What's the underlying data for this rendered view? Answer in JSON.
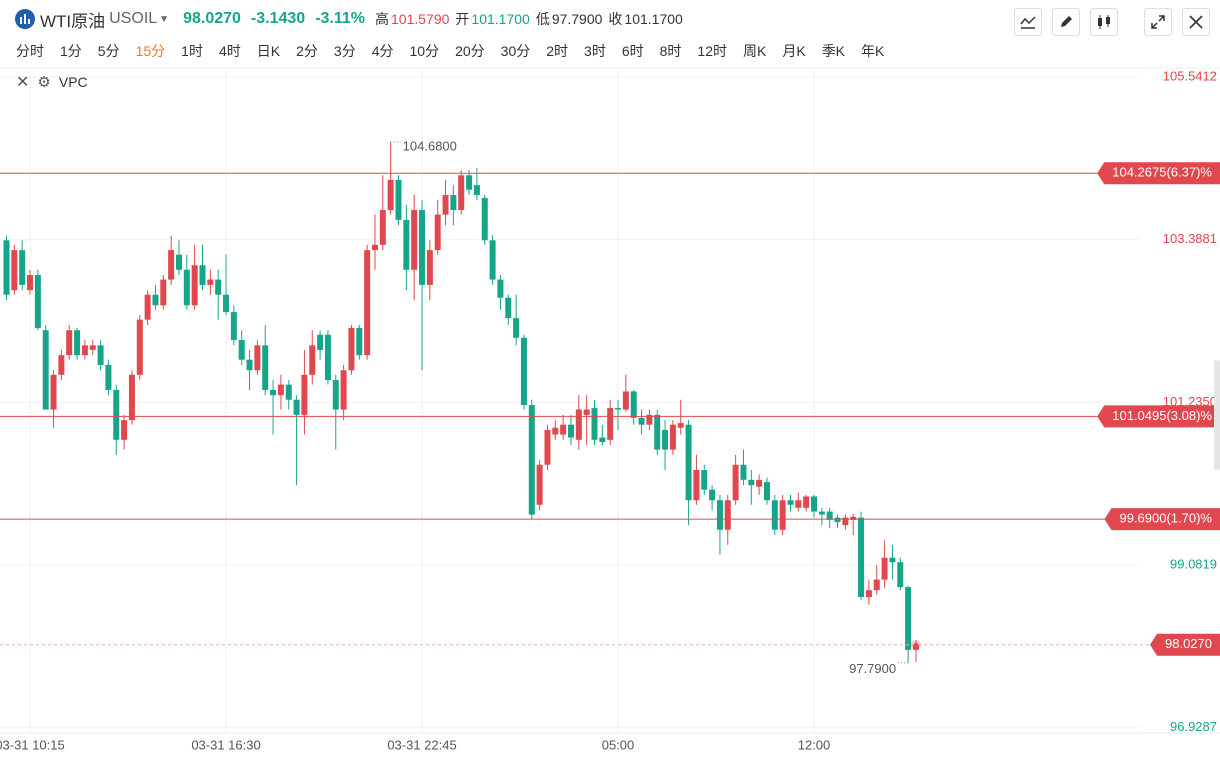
{
  "header": {
    "symbol_name": "WTI原油",
    "symbol": "USOIL",
    "last": "98.0270",
    "change": "-3.1430",
    "change_pct": "-3.11%",
    "high_label": "高",
    "high": "101.5790",
    "open_label": "开",
    "open": "101.1700",
    "low_label": "低",
    "low": "97.7900",
    "close_label": "收",
    "close": {
      "value": 101.17,
      "label": "101.1700"
    },
    "tabs": [
      "分时",
      "1分",
      "5分",
      "15分",
      "1时",
      "4时",
      "日K",
      "2分",
      "3分",
      "4分",
      "10分",
      "20分",
      "30分",
      "2时",
      "3时",
      "6时",
      "8时",
      "12时",
      "周K",
      "月K",
      "季K",
      "年K"
    ],
    "active_tab": "15分",
    "indicator": "VPC"
  },
  "chart_data": {
    "type": "candlestick",
    "up_color": "#e0474e",
    "down_color": "#17a58a",
    "grid": true,
    "categories": [
      null,
      null,
      null,
      "03-31 10:15",
      null,
      null,
      null,
      null,
      null,
      null,
      null,
      null,
      null,
      null,
      null,
      null,
      null,
      null,
      null,
      null,
      null,
      null,
      null,
      null,
      null,
      null,
      null,
      null,
      "03-31 16:30",
      null,
      null,
      null,
      null,
      null,
      null,
      null,
      null,
      null,
      null,
      null,
      null,
      null,
      null,
      null,
      null,
      null,
      null,
      null,
      null,
      null,
      null,
      null,
      null,
      "03-31 22:45",
      null,
      null,
      null,
      null,
      null,
      null,
      null,
      null,
      null,
      null,
      null,
      null,
      null,
      null,
      null,
      null,
      null,
      null,
      null,
      null,
      null,
      null,
      null,
      null,
      "05:00",
      null,
      null,
      null,
      null,
      null,
      null,
      null,
      null,
      null,
      null,
      null,
      null,
      null,
      null,
      null,
      null,
      null,
      null,
      null,
      null,
      null,
      null,
      null,
      null,
      "12:00",
      null,
      null,
      null,
      null,
      null,
      null,
      null,
      null,
      null,
      null,
      null,
      null,
      null
    ],
    "open": [
      103.38,
      102.72,
      103.25,
      102.72,
      102.92,
      102.19,
      101.14,
      101.6,
      101.86,
      102.19,
      101.86,
      101.93,
      101.99,
      101.73,
      101.4,
      100.74,
      101.0,
      101.6,
      102.33,
      102.66,
      102.52,
      102.86,
      103.19,
      102.99,
      102.52,
      103.05,
      102.79,
      102.86,
      102.66,
      102.43,
      102.06,
      101.8,
      101.66,
      101.99,
      101.4,
      101.33,
      101.47,
      101.27,
      101.07,
      101.6,
      102.13,
      102.13,
      101.53,
      101.14,
      101.66,
      102.22,
      101.86,
      103.25,
      103.32,
      103.78,
      104.18,
      103.65,
      102.99,
      103.78,
      102.79,
      103.25,
      103.72,
      103.98,
      103.78,
      104.24,
      104.11,
      103.94,
      103.38,
      102.86,
      102.62,
      102.35,
      102.09,
      101.2,
      99.88,
      100.41,
      100.81,
      100.81,
      100.94,
      100.74,
      101.07,
      101.16,
      100.77,
      100.74,
      101.16,
      101.14,
      101.38,
      101.03,
      100.94,
      101.07,
      100.87,
      100.61,
      100.9,
      100.94,
      99.94,
      100.34,
      100.08,
      99.94,
      99.55,
      99.94,
      100.41,
      100.21,
      100.12,
      100.18,
      99.94,
      99.55,
      99.94,
      99.84,
      99.84,
      99.99,
      99.79,
      99.79,
      99.71,
      99.61,
      99.68,
      99.71,
      98.66,
      98.75,
      98.89,
      99.18,
      99.12,
      98.79,
      97.96
    ],
    "high": [
      103.44,
      103.32,
      103.38,
      102.99,
      102.99,
      102.26,
      101.66,
      101.93,
      102.26,
      102.22,
      102.06,
      102.06,
      102.06,
      101.8,
      101.47,
      101.07,
      101.66,
      102.39,
      102.72,
      102.79,
      102.92,
      103.44,
      103.38,
      103.19,
      103.32,
      103.32,
      102.99,
      102.99,
      103.19,
      102.52,
      102.19,
      101.93,
      102.06,
      102.26,
      101.53,
      101.6,
      101.53,
      101.33,
      101.93,
      102.19,
      102.19,
      102.19,
      101.6,
      101.73,
      102.26,
      102.26,
      103.32,
      103.72,
      104.24,
      104.68,
      104.24,
      103.85,
      103.98,
      103.91,
      103.38,
      103.91,
      104.18,
      104.11,
      104.31,
      104.31,
      104.34,
      103.98,
      103.45,
      102.92,
      102.66,
      102.66,
      102.13,
      101.27,
      100.47,
      100.94,
      101.0,
      101.07,
      101.07,
      101.33,
      101.33,
      101.27,
      100.94,
      101.27,
      101.27,
      101.6,
      101.4,
      101.14,
      101.14,
      101.14,
      101.0,
      101.0,
      101.27,
      101.0,
      100.54,
      100.41,
      100.14,
      100.01,
      100.01,
      100.54,
      100.61,
      100.34,
      100.28,
      100.24,
      100.01,
      100.01,
      100.01,
      100.04,
      100.01,
      100.01,
      99.84,
      99.84,
      99.75,
      99.75,
      99.76,
      99.79,
      98.89,
      99.08,
      99.41,
      99.35,
      99.18,
      98.81,
      98.09
    ],
    "low": [
      102.59,
      102.66,
      102.72,
      102.66,
      102.19,
      101.14,
      100.9,
      101.53,
      101.8,
      101.8,
      101.8,
      101.86,
      101.66,
      101.33,
      100.54,
      100.61,
      100.94,
      101.53,
      102.26,
      102.46,
      102.46,
      102.79,
      102.92,
      102.46,
      102.46,
      102.72,
      102.66,
      102.33,
      102.39,
      101.99,
      101.73,
      101.4,
      101.6,
      101.33,
      100.81,
      101.14,
      101.14,
      100.14,
      100.81,
      101.47,
      101.8,
      101.47,
      100.61,
      101.0,
      101.6,
      101.8,
      101.8,
      102.99,
      103.25,
      103.72,
      103.58,
      102.72,
      102.59,
      101.66,
      102.59,
      103.19,
      103.58,
      103.58,
      103.72,
      103.98,
      103.91,
      103.32,
      102.79,
      102.46,
      102.26,
      101.99,
      101.14,
      99.68,
      99.81,
      100.34,
      100.74,
      100.74,
      100.67,
      100.61,
      100.67,
      100.67,
      100.67,
      100.67,
      100.87,
      101.11,
      100.94,
      100.81,
      100.87,
      100.54,
      100.34,
      100.54,
      100.81,
      99.61,
      99.88,
      100.01,
      99.81,
      99.22,
      99.35,
      99.88,
      100.14,
      99.88,
      100.01,
      99.88,
      99.48,
      99.48,
      99.79,
      99.79,
      99.79,
      99.71,
      99.61,
      99.57,
      99.57,
      99.55,
      99.48,
      98.62,
      98.56,
      98.69,
      98.78,
      98.89,
      98.75,
      97.79,
      97.8
    ],
    "close": [
      102.66,
      103.25,
      102.79,
      102.92,
      102.22,
      101.14,
      101.6,
      101.86,
      102.19,
      101.86,
      101.99,
      101.99,
      101.73,
      101.4,
      100.74,
      101.0,
      101.6,
      102.33,
      102.66,
      102.52,
      102.86,
      103.25,
      102.99,
      102.52,
      103.05,
      102.79,
      102.86,
      102.66,
      102.43,
      102.06,
      101.8,
      101.66,
      101.99,
      101.4,
      101.33,
      101.47,
      101.27,
      101.07,
      101.6,
      101.99,
      101.93,
      101.53,
      101.14,
      101.66,
      102.22,
      101.86,
      103.25,
      103.32,
      103.78,
      104.18,
      103.65,
      102.99,
      103.78,
      102.79,
      103.25,
      103.72,
      103.98,
      103.78,
      104.24,
      104.05,
      103.98,
      103.38,
      102.86,
      102.62,
      102.35,
      102.09,
      101.2,
      99.75,
      100.41,
      100.87,
      100.9,
      100.94,
      100.77,
      101.14,
      101.14,
      100.74,
      100.71,
      101.16,
      101.14,
      101.38,
      101.03,
      100.94,
      101.07,
      100.61,
      100.61,
      100.94,
      100.96,
      99.94,
      100.34,
      100.08,
      99.94,
      99.55,
      99.94,
      100.41,
      100.21,
      100.14,
      100.21,
      99.94,
      99.55,
      99.94,
      99.88,
      99.94,
      99.99,
      99.79,
      99.75,
      99.68,
      99.65,
      99.71,
      99.72,
      98.66,
      98.75,
      98.89,
      99.18,
      99.12,
      98.79,
      97.96,
      98.027
    ],
    "ylim": [
      96.86,
      105.66
    ],
    "yticks": [
      105.5412,
      103.3881,
      {
        "value": 101.235,
        "label": "101.2350"
      },
      99.0819,
      96.9287
    ],
    "price_lines": [
      {
        "value": 104.2675,
        "label": "104.2675(6.37)%"
      },
      {
        "value": 101.0495,
        "label": "101.0495(3.08)%"
      },
      {
        "value": 99.69,
        "label": "99.6900(1.70)%"
      }
    ],
    "last_price": {
      "value": 98.027,
      "label": "98.0270"
    },
    "annotations": [
      {
        "value": 104.68,
        "label": "104.6800"
      },
      {
        "value": 97.79,
        "label": "97.7900"
      }
    ]
  }
}
